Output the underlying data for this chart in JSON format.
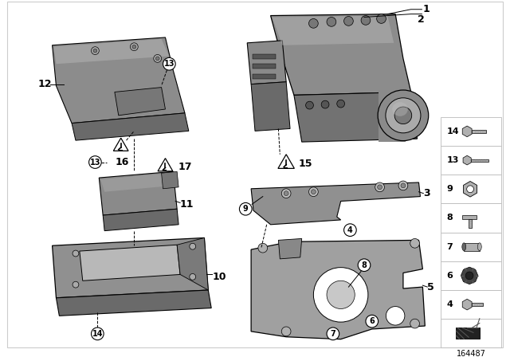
{
  "bg_color": "#ffffff",
  "part_number": "164487",
  "gray_main": "#8a8a8a",
  "gray_light": "#b0b0b0",
  "gray_dark": "#666666",
  "gray_mid": "#999999",
  "black": "#000000",
  "white": "#ffffff"
}
